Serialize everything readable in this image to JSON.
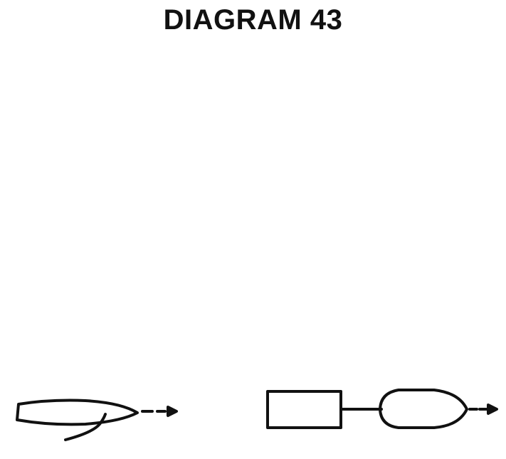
{
  "title": "DIAGRAM 43",
  "colors": {
    "ink": "#111111",
    "background": "#ffffff"
  },
  "figures": [
    {
      "name": "sailboat-hull-with-bow-line",
      "icon": "boat-hull-icon"
    },
    {
      "name": "towed-boat-with-block",
      "icon": "towed-boat-icon"
    }
  ]
}
